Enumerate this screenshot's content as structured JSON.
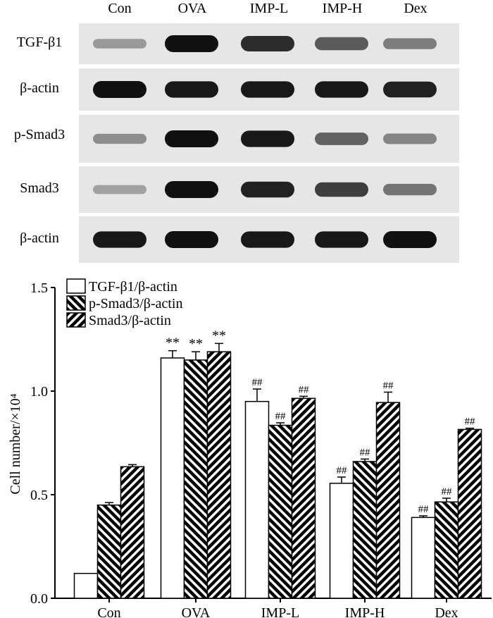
{
  "lanes": [
    "Con",
    "OVA",
    "IMP-L",
    "IMP-H",
    "Dex"
  ],
  "blots": [
    {
      "label": "TGF-β1",
      "intensity": [
        0.25,
        1.0,
        0.85,
        0.6,
        0.4
      ]
    },
    {
      "label": "β-actin",
      "intensity": [
        1.0,
        0.95,
        0.95,
        0.95,
        0.9
      ]
    },
    {
      "label": "p-Smad3",
      "intensity": [
        0.3,
        1.0,
        0.95,
        0.55,
        0.35
      ]
    },
    {
      "label": "Smad3",
      "intensity": [
        0.2,
        1.0,
        0.9,
        0.75,
        0.45
      ]
    },
    {
      "label": "β-actin",
      "intensity": [
        0.95,
        1.0,
        0.95,
        0.95,
        1.0
      ]
    }
  ],
  "colors": {
    "band": "#101010",
    "strip": "#e6e6e6",
    "bar_stroke": "#000000",
    "bar_fill_open": "#ffffff"
  },
  "chart_data": {
    "type": "bar",
    "ylabel": "Cell number/×10⁴",
    "ylim": [
      0,
      1.5
    ],
    "yticks": [
      "0.0",
      "0.5",
      "1.0",
      "1.5"
    ],
    "categories": [
      "Con",
      "OVA",
      "IMP-L",
      "IMP-H",
      "Dex"
    ],
    "series": [
      {
        "name": "TGF-β1/β-actin",
        "pattern": "open",
        "values": [
          0.12,
          1.16,
          0.95,
          0.555,
          0.39
        ],
        "errors": [
          0.0,
          0.035,
          0.06,
          0.03,
          0.008
        ],
        "labels": [
          "",
          "**",
          "##",
          "##",
          "##"
        ]
      },
      {
        "name": "p-Smad3/β-actin",
        "pattern": "hatch-back",
        "values": [
          0.45,
          1.15,
          0.835,
          0.66,
          0.465
        ],
        "errors": [
          0.012,
          0.04,
          0.012,
          0.012,
          0.018
        ],
        "labels": [
          "",
          "**",
          "##",
          "##",
          "##"
        ]
      },
      {
        "name": "Smad3/β-actin",
        "pattern": "hatch-fwd",
        "values": [
          0.635,
          1.19,
          0.965,
          0.945,
          0.815
        ],
        "errors": [
          0.01,
          0.04,
          0.01,
          0.05,
          0.006
        ],
        "labels": [
          "",
          "**",
          "##",
          "##",
          "##"
        ]
      }
    ],
    "legend_position": "top-left"
  }
}
